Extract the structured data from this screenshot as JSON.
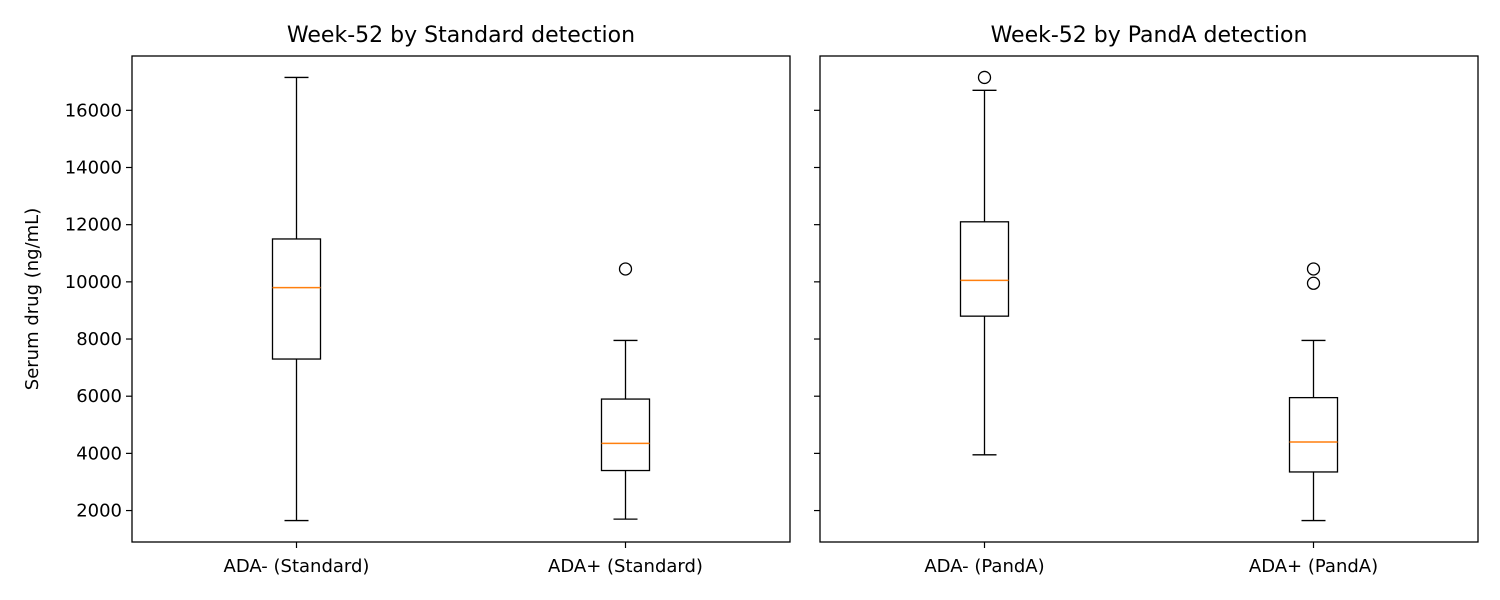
{
  "chart_data": [
    {
      "type": "box",
      "title": "Week-52 by Standard detection",
      "ylabel": "Serum drug (ng/mL)",
      "xlabel": "",
      "ylim": [
        900,
        17900
      ],
      "yticks": [
        2000,
        4000,
        6000,
        8000,
        10000,
        12000,
        14000,
        16000
      ],
      "show_ytick_labels": true,
      "grid": false,
      "categories": [
        "ADA- (Standard)",
        "ADA+ (Standard)"
      ],
      "boxes": [
        {
          "whisker_low": 1650,
          "q1": 7300,
          "median": 9800,
          "q3": 11500,
          "whisker_high": 17150,
          "outliers": []
        },
        {
          "whisker_low": 1700,
          "q1": 3400,
          "median": 4350,
          "q3": 5900,
          "whisker_high": 7950,
          "outliers": [
            10450
          ]
        }
      ],
      "colors": {
        "box": "#000000",
        "median": "#ff7f0e"
      }
    },
    {
      "type": "box",
      "title": "Week-52 by PandA detection",
      "ylabel": "",
      "xlabel": "",
      "ylim": [
        900,
        17900
      ],
      "yticks": [
        2000,
        4000,
        6000,
        8000,
        10000,
        12000,
        14000,
        16000
      ],
      "show_ytick_labels": false,
      "grid": false,
      "categories": [
        "ADA- (PandA)",
        "ADA+ (PandA)"
      ],
      "boxes": [
        {
          "whisker_low": 3950,
          "q1": 8800,
          "median": 10050,
          "q3": 12100,
          "whisker_high": 16700,
          "outliers": [
            17150
          ]
        },
        {
          "whisker_low": 1650,
          "q1": 3350,
          "median": 4400,
          "q3": 5950,
          "whisker_high": 7950,
          "outliers": [
            10450,
            9950
          ]
        }
      ],
      "colors": {
        "box": "#000000",
        "median": "#ff7f0e"
      }
    }
  ]
}
